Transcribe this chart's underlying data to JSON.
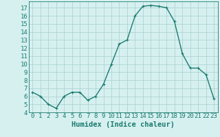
{
  "x": [
    0,
    1,
    2,
    3,
    4,
    5,
    6,
    7,
    8,
    9,
    10,
    11,
    12,
    13,
    14,
    15,
    16,
    17,
    18,
    19,
    20,
    21,
    22,
    23
  ],
  "y": [
    6.5,
    6.0,
    5.0,
    4.5,
    6.0,
    6.5,
    6.5,
    5.5,
    6.0,
    7.5,
    10.0,
    12.5,
    13.0,
    16.0,
    17.2,
    17.3,
    17.2,
    17.0,
    15.3,
    11.3,
    9.5,
    9.5,
    8.7,
    5.7
  ],
  "line_color": "#1a7a6e",
  "marker": "+",
  "marker_size": 3,
  "bg_color": "#d6f0f0",
  "grid_color": "#a8cece",
  "xlabel": "Humidex (Indice chaleur)",
  "xlabel_fontsize": 7.5,
  "xlim": [
    -0.5,
    23.5
  ],
  "ylim": [
    4.0,
    17.8
  ],
  "yticks": [
    4,
    5,
    6,
    7,
    8,
    9,
    10,
    11,
    12,
    13,
    14,
    15,
    16,
    17
  ],
  "xticks": [
    0,
    1,
    2,
    3,
    4,
    5,
    6,
    7,
    8,
    9,
    10,
    11,
    12,
    13,
    14,
    15,
    16,
    17,
    18,
    19,
    20,
    21,
    22,
    23
  ],
  "tick_fontsize": 6.5,
  "line_width": 1.0
}
